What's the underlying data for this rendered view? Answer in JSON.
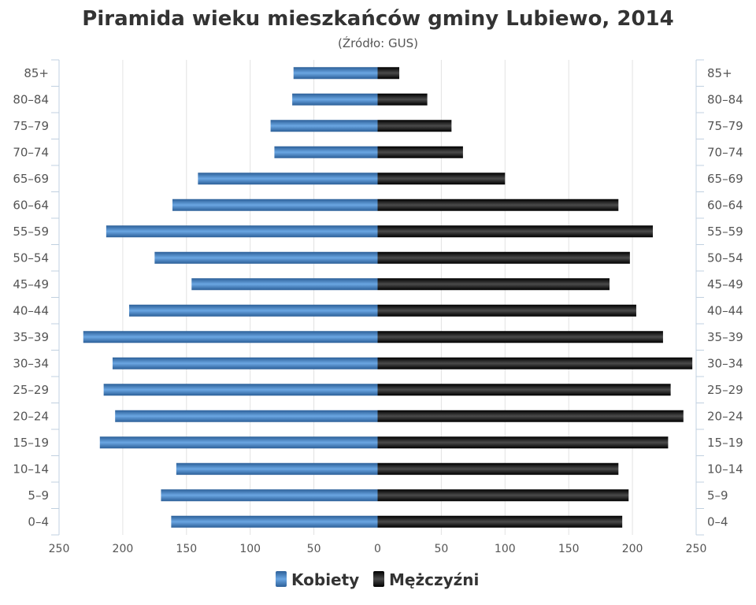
{
  "chart_data": {
    "type": "bar",
    "orientation": "horizontal-pyramid",
    "title": "Piramida wieku mieszkańców gminy Lubiewo, 2014",
    "subtitle": "(Źródło: GUS)",
    "categories": [
      "85+",
      "80–84",
      "75–79",
      "70–74",
      "65–69",
      "60–64",
      "55–59",
      "50–54",
      "45–49",
      "40–44",
      "35–39",
      "30–34",
      "25–29",
      "20–24",
      "15–19",
      "10–14",
      "5–9",
      "0–4"
    ],
    "series": [
      {
        "name": "Kobiety",
        "color": "#3d7bc0",
        "side": "left",
        "values": [
          66,
          67,
          84,
          81,
          141,
          161,
          213,
          175,
          146,
          195,
          231,
          208,
          215,
          206,
          218,
          158,
          170,
          162
        ]
      },
      {
        "name": "Mężczyźni",
        "legend_label": "Mężczyźni",
        "color": "#1a1a1a",
        "side": "right",
        "values": [
          17,
          39,
          58,
          67,
          100,
          189,
          216,
          198,
          182,
          203,
          224,
          247,
          230,
          240,
          228,
          189,
          197,
          192
        ]
      }
    ],
    "xlim": [
      -250,
      250
    ],
    "x_ticks": [
      250,
      200,
      150,
      100,
      50,
      0,
      50,
      100,
      150,
      200,
      250
    ],
    "grid": true,
    "legend": "bottom-center"
  }
}
